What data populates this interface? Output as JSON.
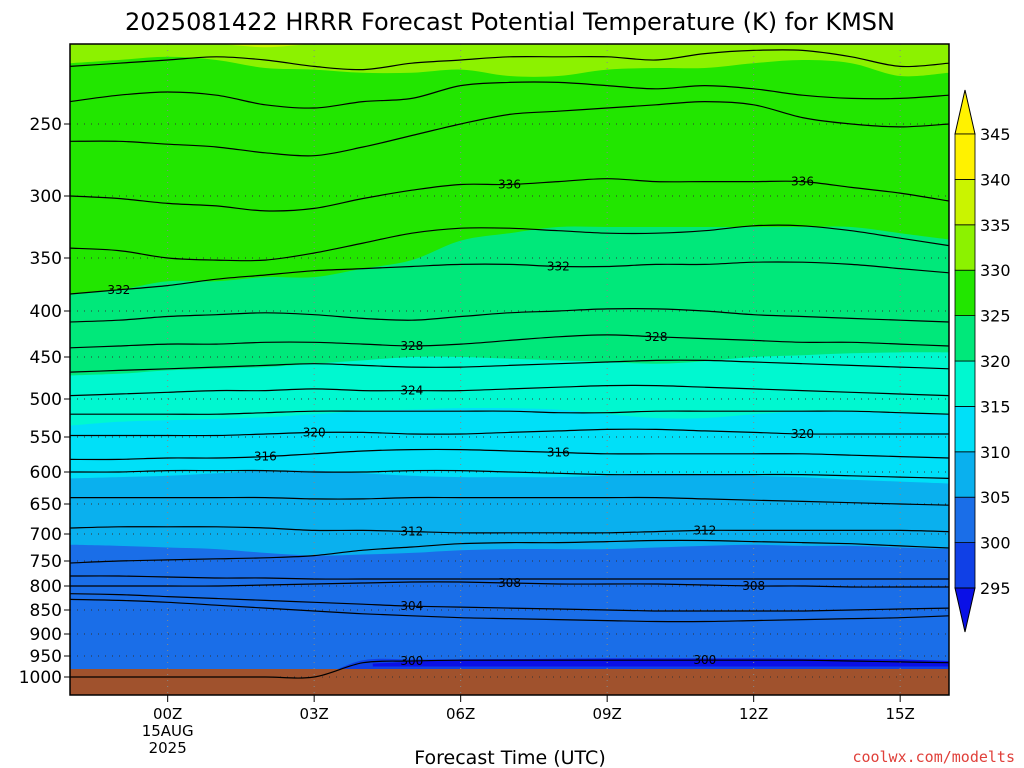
{
  "chart_data": {
    "type": "heatmap",
    "title": "2025081422 HRRR Forecast Potential Temperature (K) for KMSN",
    "xlabel": "Forecast Time (UTC)",
    "ylabel": "",
    "credit": "coolwx.com/modelts",
    "x": [
      -2,
      16
    ],
    "xticks": [
      {
        "value": 0,
        "label": "00Z",
        "sub1": "15AUG",
        "sub2": "2025"
      },
      {
        "value": 3,
        "label": "03Z",
        "sub1": "",
        "sub2": ""
      },
      {
        "value": 6,
        "label": "06Z",
        "sub1": "",
        "sub2": ""
      },
      {
        "value": 9,
        "label": "09Z",
        "sub1": "",
        "sub2": ""
      },
      {
        "value": 12,
        "label": "12Z",
        "sub1": "",
        "sub2": ""
      },
      {
        "value": 15,
        "label": "15Z",
        "sub1": "",
        "sub2": ""
      }
    ],
    "yticks": [
      "250",
      "300",
      "350",
      "400",
      "450",
      "500",
      "550",
      "600",
      "650",
      "700",
      "750",
      "800",
      "850",
      "900",
      "950",
      "1000"
    ],
    "ylim": [
      1000,
      200
    ],
    "yscale": "log-pressure",
    "colorbar": {
      "levels": [
        "295",
        "300",
        "305",
        "310",
        "315",
        "320",
        "325",
        "330",
        "335",
        "340",
        "345"
      ],
      "colors": [
        "#0a10e6",
        "#1040e6",
        "#1a6ee8",
        "#0ab0ee",
        "#00e0f8",
        "#00f8d0",
        "#00e87a",
        "#22e600",
        "#8cf200",
        "#caf400",
        "#fff200"
      ]
    },
    "fill_layers": [
      {
        "theta": 300,
        "color": "#1040e6",
        "p": [
          1000,
          1000,
          1000,
          1000,
          1000,
          1000,
          1000,
          1000,
          1000,
          1000,
          1000,
          1000,
          1000,
          1000,
          1000,
          1000,
          1000,
          1000,
          1000
        ]
      },
      {
        "theta": 305,
        "color": "#1a6ee8",
        "p": [
          1000,
          1000,
          1000,
          1000,
          1000,
          1000,
          960,
          958,
          958,
          958,
          958,
          958,
          958,
          958,
          958,
          958,
          958,
          960,
          962
        ]
      },
      {
        "theta": 310,
        "color": "#0ab0ee",
        "p": [
          720,
          722,
          725,
          728,
          735,
          740,
          738,
          735,
          730,
          728,
          728,
          728,
          725,
          722,
          720,
          722,
          722,
          725,
          728
        ]
      },
      {
        "theta": 315,
        "color": "#00e0f8",
        "p": [
          610,
          608,
          606,
          602,
          598,
          598,
          602,
          606,
          608,
          608,
          608,
          606,
          604,
          604,
          606,
          608,
          612,
          615,
          618
        ]
      },
      {
        "theta": 320,
        "color": "#00f8d0",
        "p": [
          535,
          530,
          528,
          526,
          524,
          520,
          516,
          514,
          512,
          512,
          514,
          520,
          525,
          525,
          520,
          516,
          516,
          518,
          520
        ]
      },
      {
        "theta": 325,
        "color": "#00e87a",
        "p": [
          472,
          470,
          466,
          464,
          462,
          458,
          454,
          450,
          450,
          452,
          454,
          456,
          458,
          455,
          450,
          448,
          446,
          445,
          445
        ]
      },
      {
        "theta": 330,
        "color": "#22e600",
        "p": [
          384,
          380,
          372,
          372,
          368,
          368,
          360,
          352,
          336,
          330,
          325,
          325,
          325,
          325,
          325,
          325,
          325,
          330,
          335
        ]
      },
      {
        "theta": 335,
        "color": "#8cf200",
        "p": [
          212,
          210,
          208,
          210,
          215,
          216,
          218,
          218,
          216,
          220,
          220,
          216,
          215,
          215,
          212,
          210,
          212,
          220,
          218
        ]
      },
      {
        "theta": 340,
        "color": "#caf400",
        "p": [
          200,
          200,
          200,
          200,
          202,
          200,
          200,
          200,
          200,
          200,
          200,
          200,
          200,
          200,
          200,
          200,
          200,
          200,
          200
        ]
      },
      {
        "theta": 345,
        "color": "#fff200",
        "p": [
          200,
          200,
          200,
          200,
          200,
          200,
          200,
          200,
          200,
          200,
          200,
          200,
          200,
          200,
          200,
          200,
          200,
          200,
          200
        ]
      }
    ],
    "contours": [
      {
        "p": [
          214,
          212,
          210,
          208,
          210,
          214,
          216,
          212,
          210,
          208,
          208,
          208,
          210,
          206,
          204,
          204,
          208,
          214,
          212
        ]
      },
      {
        "p": [
          236,
          232,
          230,
          232,
          238,
          240,
          236,
          234,
          226,
          224,
          224,
          226,
          228,
          226,
          228,
          232,
          234,
          234,
          232
        ]
      },
      {
        "p": [
          262,
          262,
          264,
          266,
          270,
          272,
          266,
          258,
          250,
          244,
          242,
          240,
          238,
          236,
          238,
          246,
          250,
          252,
          250
        ]
      },
      {
        "p": [
          300,
          302,
          306,
          308,
          312,
          310,
          302,
          296,
          292,
          292,
          290,
          288,
          290,
          290,
          290,
          290,
          294,
          298,
          304
        ],
        "label": "336",
        "labels_at": [
          7,
          13
        ]
      },
      {
        "p": [
          342,
          344,
          350,
          352,
          352,
          346,
          338,
          330,
          326,
          326,
          328,
          330,
          330,
          328,
          324,
          324,
          328,
          334,
          340
        ]
      },
      {
        "p": [
          384,
          380,
          376,
          370,
          366,
          362,
          360,
          358,
          356,
          356,
          358,
          358,
          356,
          356,
          354,
          354,
          356,
          360,
          364
        ],
        "label": "332",
        "labels_at": [
          -1,
          8
        ]
      },
      {
        "p": [
          412,
          410,
          406,
          404,
          402,
          404,
          408,
          410,
          406,
          402,
          400,
          398,
          398,
          400,
          404,
          406,
          408,
          410,
          412
        ]
      },
      {
        "p": [
          440,
          438,
          436,
          436,
          434,
          434,
          436,
          438,
          436,
          432,
          428,
          426,
          428,
          430,
          432,
          434,
          434,
          436,
          438
        ],
        "label": "328",
        "labels_at": [
          5,
          10
        ]
      },
      {
        "p": [
          468,
          466,
          464,
          462,
          460,
          458,
          460,
          462,
          462,
          460,
          458,
          456,
          454,
          454,
          456,
          458,
          460,
          462,
          464
        ]
      },
      {
        "p": [
          496,
          494,
          492,
          490,
          490,
          488,
          490,
          490,
          490,
          488,
          486,
          484,
          484,
          486,
          488,
          490,
          492,
          494,
          496
        ],
        "label": "324",
        "labels_at": [
          5
        ]
      },
      {
        "p": [
          520,
          520,
          520,
          520,
          518,
          516,
          516,
          516,
          516,
          516,
          518,
          518,
          516,
          516,
          516,
          516,
          516,
          518,
          520
        ]
      },
      {
        "p": [
          548,
          548,
          548,
          548,
          546,
          544,
          544,
          546,
          546,
          544,
          542,
          540,
          540,
          542,
          544,
          546,
          546,
          546,
          546
        ],
        "label": "320",
        "labels_at": [
          3,
          13
        ]
      },
      {
        "p": [
          582,
          582,
          580,
          580,
          578,
          574,
          570,
          568,
          568,
          570,
          572,
          574,
          574,
          574,
          574,
          574,
          576,
          578,
          580
        ],
        "label": "316",
        "labels_at": [
          2,
          8
        ]
      },
      {
        "p": [
          600,
          600,
          598,
          598,
          598,
          600,
          600,
          598,
          598,
          600,
          602,
          604,
          604,
          604,
          604,
          604,
          606,
          608,
          610
        ]
      },
      {
        "p": [
          640,
          640,
          640,
          640,
          640,
          642,
          642,
          640,
          640,
          640,
          640,
          640,
          640,
          642,
          644,
          646,
          648,
          650,
          652
        ]
      },
      {
        "p": [
          690,
          688,
          688,
          688,
          690,
          694,
          694,
          696,
          698,
          698,
          698,
          698,
          696,
          694,
          694,
          694,
          694,
          694,
          696
        ],
        "label": "312",
        "labels_at": [
          5,
          11
        ]
      },
      {
        "p": [
          754,
          750,
          748,
          746,
          744,
          740,
          730,
          724,
          718,
          716,
          716,
          714,
          712,
          712,
          714,
          716,
          718,
          722,
          726
        ]
      },
      {
        "p": [
          780,
          780,
          782,
          784,
          784,
          786,
          786,
          786,
          786,
          786,
          786,
          786,
          786,
          786,
          786,
          786,
          786,
          786,
          786
        ]
      },
      {
        "p": [
          800,
          800,
          800,
          800,
          798,
          796,
          794,
          792,
          792,
          794,
          796,
          796,
          796,
          798,
          800,
          800,
          802,
          802,
          802
        ],
        "label": "308",
        "labels_at": [
          7,
          12
        ]
      },
      {
        "p": [
          816,
          818,
          822,
          826,
          830,
          834,
          838,
          842,
          844,
          846,
          848,
          850,
          852,
          852,
          852,
          852,
          850,
          848,
          846
        ],
        "label": "304",
        "labels_at": [
          5
        ]
      },
      {
        "p": [
          828,
          830,
          834,
          840,
          846,
          852,
          858,
          862,
          866,
          868,
          870,
          872,
          874,
          874,
          872,
          870,
          868,
          866,
          862
        ]
      },
      {
        "p": [
          1000,
          1000,
          1000,
          1000,
          1000,
          1000,
          966,
          962,
          960,
          960,
          960,
          960,
          960,
          960,
          960,
          960,
          962,
          964,
          966
        ],
        "label": "300",
        "labels_at": [
          5,
          11
        ]
      }
    ]
  }
}
